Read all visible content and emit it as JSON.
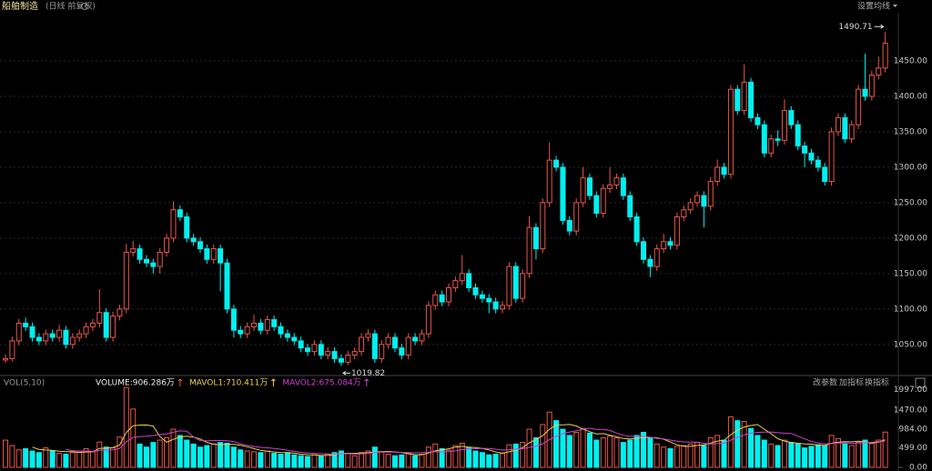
{
  "header": {
    "title": "船舶制造",
    "subtitle": "(日线 前复权)",
    "settings": "设置均线"
  },
  "toolbar": [
    "改参数",
    "加指标",
    "换指标"
  ],
  "chart_data": [
    {
      "type": "candlestick",
      "up_color": "#e8574b",
      "down_color": "#00f0f0",
      "grid": true,
      "ylim": [
        1010,
        1518
      ],
      "yticks": [
        {
          "value": 1050,
          "label": "1050.00"
        },
        {
          "value": 1100,
          "label": "1100.00"
        },
        {
          "value": 1150,
          "label": "1150.00"
        },
        {
          "value": 1200,
          "label": "1200.00"
        },
        {
          "value": 1250,
          "label": "1250.00"
        },
        {
          "value": 1300,
          "label": "1300.00"
        },
        {
          "value": 1350,
          "label": "1350.00"
        },
        {
          "value": 1400,
          "label": "1400.00"
        },
        {
          "value": 1450,
          "label": "1450.00"
        }
      ],
      "annotations": [
        1490.71,
        1019.82
      ],
      "ohlc": [
        [
          1028,
          1036,
          1024,
          1030
        ],
        [
          1030,
          1061,
          1026,
          1055
        ],
        [
          1055,
          1086,
          1049,
          1080
        ],
        [
          1080,
          1088,
          1069,
          1075
        ],
        [
          1075,
          1081,
          1054,
          1060
        ],
        [
          1060,
          1066,
          1049,
          1055
        ],
        [
          1055,
          1071,
          1049,
          1065
        ],
        [
          1065,
          1071,
          1054,
          1060
        ],
        [
          1060,
          1078,
          1054,
          1070
        ],
        [
          1070,
          1076,
          1044,
          1050
        ],
        [
          1050,
          1066,
          1044,
          1060
        ],
        [
          1060,
          1071,
          1054,
          1065
        ],
        [
          1065,
          1081,
          1059,
          1075
        ],
        [
          1075,
          1086,
          1069,
          1080
        ],
        [
          1080,
          1128,
          1074,
          1095
        ],
        [
          1095,
          1101,
          1054,
          1060
        ],
        [
          1060,
          1096,
          1054,
          1090
        ],
        [
          1090,
          1106,
          1084,
          1100
        ],
        [
          1100,
          1192,
          1094,
          1180
        ],
        [
          1180,
          1196,
          1174,
          1185
        ],
        [
          1185,
          1191,
          1164,
          1170
        ],
        [
          1170,
          1176,
          1159,
          1165
        ],
        [
          1165,
          1171,
          1150,
          1160
        ],
        [
          1160,
          1186,
          1150,
          1180
        ],
        [
          1180,
          1206,
          1174,
          1200
        ],
        [
          1200,
          1252,
          1194,
          1240
        ],
        [
          1240,
          1246,
          1224,
          1230
        ],
        [
          1230,
          1236,
          1194,
          1200
        ],
        [
          1200,
          1206,
          1189,
          1195
        ],
        [
          1195,
          1201,
          1179,
          1185
        ],
        [
          1185,
          1191,
          1164,
          1170
        ],
        [
          1170,
          1191,
          1164,
          1185
        ],
        [
          1185,
          1191,
          1125,
          1165
        ],
        [
          1165,
          1171,
          1094,
          1100
        ],
        [
          1100,
          1106,
          1060,
          1070
        ],
        [
          1070,
          1076,
          1059,
          1065
        ],
        [
          1065,
          1081,
          1059,
          1075
        ],
        [
          1075,
          1092,
          1069,
          1080
        ],
        [
          1080,
          1086,
          1064,
          1070
        ],
        [
          1070,
          1091,
          1064,
          1085
        ],
        [
          1085,
          1091,
          1069,
          1075
        ],
        [
          1075,
          1081,
          1059,
          1065
        ],
        [
          1065,
          1071,
          1054,
          1060
        ],
        [
          1060,
          1066,
          1049,
          1055
        ],
        [
          1055,
          1061,
          1039,
          1045
        ],
        [
          1045,
          1051,
          1034,
          1040
        ],
        [
          1040,
          1056,
          1034,
          1050
        ],
        [
          1050,
          1056,
          1029,
          1035
        ],
        [
          1035,
          1046,
          1029,
          1040
        ],
        [
          1040,
          1046,
          1024,
          1030
        ],
        [
          1030,
          1036,
          1019.82,
          1025
        ],
        [
          1025,
          1041,
          1021,
          1035
        ],
        [
          1035,
          1046,
          1029,
          1040
        ],
        [
          1040,
          1066,
          1034,
          1060
        ],
        [
          1060,
          1071,
          1054,
          1065
        ],
        [
          1065,
          1071,
          1024,
          1030
        ],
        [
          1030,
          1056,
          1024,
          1050
        ],
        [
          1050,
          1066,
          1044,
          1060
        ],
        [
          1060,
          1066,
          1039,
          1045
        ],
        [
          1045,
          1051,
          1029,
          1035
        ],
        [
          1035,
          1066,
          1029,
          1060
        ],
        [
          1060,
          1066,
          1049,
          1055
        ],
        [
          1055,
          1071,
          1049,
          1065
        ],
        [
          1065,
          1111,
          1059,
          1105
        ],
        [
          1105,
          1126,
          1099,
          1120
        ],
        [
          1120,
          1126,
          1104,
          1110
        ],
        [
          1110,
          1136,
          1104,
          1130
        ],
        [
          1130,
          1146,
          1124,
          1140
        ],
        [
          1140,
          1176,
          1134,
          1150
        ],
        [
          1150,
          1156,
          1124,
          1130
        ],
        [
          1130,
          1136,
          1114,
          1120
        ],
        [
          1120,
          1126,
          1109,
          1115
        ],
        [
          1115,
          1121,
          1094,
          1110
        ],
        [
          1110,
          1116,
          1094,
          1100
        ],
        [
          1100,
          1111,
          1094,
          1105
        ],
        [
          1105,
          1166,
          1099,
          1160
        ],
        [
          1160,
          1166,
          1109,
          1115
        ],
        [
          1115,
          1156,
          1109,
          1150
        ],
        [
          1150,
          1231,
          1144,
          1215
        ],
        [
          1215,
          1221,
          1170,
          1185
        ],
        [
          1185,
          1256,
          1179,
          1250
        ],
        [
          1250,
          1335,
          1244,
          1310
        ],
        [
          1310,
          1316,
          1294,
          1300
        ],
        [
          1300,
          1306,
          1219,
          1225
        ],
        [
          1225,
          1231,
          1204,
          1210
        ],
        [
          1210,
          1256,
          1204,
          1250
        ],
        [
          1250,
          1300,
          1244,
          1285
        ],
        [
          1285,
          1291,
          1254,
          1260
        ],
        [
          1260,
          1266,
          1229,
          1235
        ],
        [
          1235,
          1276,
          1229,
          1270
        ],
        [
          1270,
          1300,
          1264,
          1275
        ],
        [
          1275,
          1291,
          1269,
          1285
        ],
        [
          1285,
          1291,
          1254,
          1260
        ],
        [
          1260,
          1266,
          1224,
          1230
        ],
        [
          1230,
          1236,
          1189,
          1195
        ],
        [
          1195,
          1201,
          1164,
          1170
        ],
        [
          1170,
          1176,
          1145,
          1160
        ],
        [
          1160,
          1191,
          1154,
          1185
        ],
        [
          1185,
          1206,
          1179,
          1195
        ],
        [
          1195,
          1201,
          1184,
          1190
        ],
        [
          1190,
          1236,
          1184,
          1230
        ],
        [
          1230,
          1246,
          1224,
          1240
        ],
        [
          1240,
          1256,
          1234,
          1250
        ],
        [
          1250,
          1266,
          1244,
          1260
        ],
        [
          1260,
          1266,
          1215,
          1245
        ],
        [
          1245,
          1286,
          1239,
          1280
        ],
        [
          1280,
          1311,
          1274,
          1300
        ],
        [
          1300,
          1306,
          1284,
          1290
        ],
        [
          1290,
          1416,
          1284,
          1410
        ],
        [
          1410,
          1416,
          1374,
          1380
        ],
        [
          1380,
          1445,
          1374,
          1420
        ],
        [
          1420,
          1426,
          1364,
          1370
        ],
        [
          1370,
          1376,
          1354,
          1360
        ],
        [
          1360,
          1366,
          1314,
          1320
        ],
        [
          1320,
          1346,
          1314,
          1340
        ],
        [
          1340,
          1352,
          1330,
          1338
        ],
        [
          1338,
          1396,
          1332,
          1380
        ],
        [
          1380,
          1386,
          1354,
          1360
        ],
        [
          1360,
          1366,
          1324,
          1330
        ],
        [
          1330,
          1336,
          1300,
          1320
        ],
        [
          1320,
          1326,
          1304,
          1310
        ],
        [
          1310,
          1316,
          1294,
          1300
        ],
        [
          1300,
          1306,
          1274,
          1280
        ],
        [
          1280,
          1356,
          1274,
          1350
        ],
        [
          1350,
          1376,
          1344,
          1370
        ],
        [
          1370,
          1376,
          1334,
          1340
        ],
        [
          1340,
          1366,
          1334,
          1360
        ],
        [
          1360,
          1416,
          1354,
          1410
        ],
        [
          1410,
          1460,
          1394,
          1400
        ],
        [
          1400,
          1436,
          1394,
          1430
        ],
        [
          1430,
          1456,
          1424,
          1440
        ],
        [
          1440,
          1490.71,
          1434,
          1475
        ]
      ]
    },
    {
      "type": "bar",
      "title": "VOL(5,10)",
      "ylim": [
        0,
        2150
      ],
      "yticks": [
        {
          "value": 0,
          "label": "0.00"
        },
        {
          "value": 499,
          "label": "499.00"
        },
        {
          "value": 984,
          "label": "984.00"
        },
        {
          "value": 1470,
          "label": "1470.00"
        },
        {
          "value": 1997,
          "label": "1997.00"
        }
      ],
      "series": [
        {
          "name": "VOLUME:906.286万",
          "values": [
            700,
            560,
            450,
            480,
            420,
            380,
            500,
            420,
            360,
            340,
            380,
            420,
            480,
            400,
            650,
            520,
            500,
            780,
            2050,
            1500,
            600,
            520,
            640,
            700,
            760,
            980,
            820,
            700,
            600,
            520,
            560,
            600,
            640,
            620,
            520,
            450,
            420,
            400,
            380,
            420,
            360,
            340,
            380,
            320,
            300,
            280,
            320,
            300,
            340,
            380,
            420,
            360,
            300,
            380,
            420,
            520,
            400,
            340,
            300,
            320,
            360,
            300,
            340,
            520,
            600,
            480,
            440,
            560,
            620,
            500,
            420,
            380,
            320,
            340,
            360,
            580,
            600,
            640,
            980,
            760,
            1100,
            1420,
            1200,
            980,
            820,
            900,
            1000,
            880,
            700,
            760,
            800,
            760,
            640,
            700,
            820,
            900,
            760,
            600,
            520,
            480,
            540,
            560,
            600,
            640,
            560,
            760,
            820,
            700,
            1300,
            1200,
            1180,
            1000,
            820,
            700,
            600,
            560,
            700,
            640,
            600,
            500,
            540,
            580,
            560,
            820,
            740,
            600,
            560,
            640,
            700,
            620,
            700,
            906.286
          ]
        },
        {
          "name": "MAVOL1:710.411万",
          "type": "line",
          "color": "#e8d24a",
          "values": [
            null,
            null,
            null,
            null,
            522,
            458,
            446,
            440,
            416,
            404,
            404,
            384,
            396,
            404,
            486,
            494,
            510,
            570,
            900,
            1070,
            1086,
            1090,
            1062,
            792,
            644,
            720,
            780,
            800,
            776,
            728,
            640,
            596,
            584,
            588,
            588,
            566,
            530,
            482,
            438,
            414,
            396,
            384,
            380,
            364,
            340,
            324,
            320,
            304,
            308,
            324,
            352,
            360,
            360,
            368,
            376,
            396,
            404,
            412,
            396,
            380,
            348,
            328,
            326,
            368,
            424,
            448,
            476,
            520,
            540,
            520,
            508,
            486,
            448,
            394,
            364,
            400,
            440,
            508,
            632,
            712,
            816,
            980,
            1092,
            1092,
            1104,
            1064,
            980,
            916,
            860,
            868,
            828,
            788,
            740,
            732,
            744,
            772,
            768,
            760,
            724,
            652,
            580,
            540,
            540,
            564,
            580,
            624,
            676,
            696,
            840,
            956,
            1040,
            1076,
            1100,
            980,
            864,
            736,
            676,
            640,
            620,
            604,
            596,
            572,
            564,
            620,
            648,
            660,
            656,
            674,
            652,
            624,
            644,
            710.411
          ]
        },
        {
          "name": "MAVOL2:675.084万",
          "type": "line",
          "color": "#d040d0",
          "values": [
            null,
            null,
            null,
            null,
            null,
            null,
            null,
            null,
            null,
            463,
            431,
            417,
            420,
            412,
            435,
            449,
            449,
            485,
            654,
            770,
            792,
            802,
            818,
            848,
            859,
            905,
            937,
            929,
            784,
            686,
            682,
            690,
            690,
            682,
            658,
            605,
            565,
            535,
            513,
            503,
            483,
            465,
            439,
            409,
            387,
            370,
            360,
            350,
            346,
            342,
            348,
            350,
            342,
            348,
            360,
            384,
            392,
            396,
            392,
            386,
            380,
            374,
            378,
            392,
            402,
            398,
            402,
            424,
            456,
            474,
            480,
            488,
            486,
            468,
            444,
            454,
            470,
            478,
            514,
            540,
            608,
            712,
            800,
            864,
            910,
            942,
            982,
            1006,
            978,
            978,
            948,
            882,
            826,
            798,
            798,
            798,
            774,
            746,
            728,
            700,
            674,
            654,
            650,
            644,
            618,
            604,
            610,
            620,
            698,
            770,
            834,
            878,
            900,
            906,
            910,
            890,
            878,
            872,
            802,
            732,
            668,
            626,
            600,
            612,
            626,
            630,
            616,
            624,
            634,
            644,
            660,
            675.084
          ]
        }
      ]
    }
  ]
}
